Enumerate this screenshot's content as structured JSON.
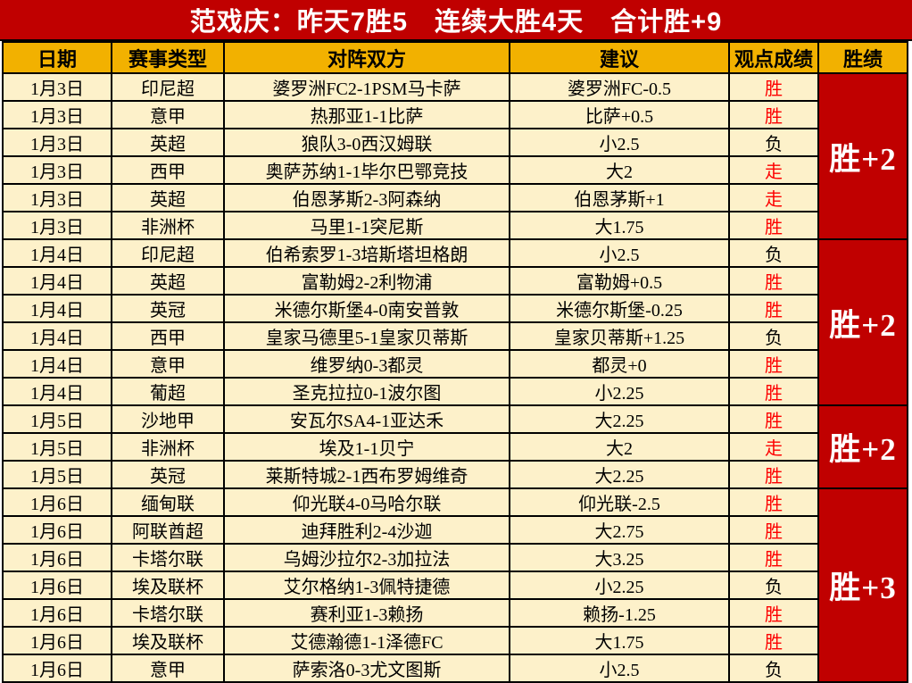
{
  "title": "范戏庆：昨天7胜5　连续大胜4天　合计胜+9",
  "columns": [
    "日期",
    "赛事类型",
    "对阵双方",
    "建议",
    "观点成绩",
    "胜绩"
  ],
  "colors": {
    "banner_red": "#C00000",
    "header_gold": "#F2B100",
    "cell_cream": "#FDF1CA",
    "win_text_red": "#FD0000",
    "loss_text_black": "#000000",
    "group_text_white": "#FFFFFF"
  },
  "groups": [
    {
      "date": "1月3日",
      "summary": "胜+2",
      "rows": [
        {
          "league": "印尼超",
          "match": "婆罗洲FC2-1PSM马卡萨",
          "tip": "婆罗洲FC-0.5",
          "result": "胜",
          "result_color": "red"
        },
        {
          "league": "意甲",
          "match": "热那亚1-1比萨",
          "tip": "比萨+0.5",
          "result": "胜",
          "result_color": "red"
        },
        {
          "league": "英超",
          "match": "狼队3-0西汉姆联",
          "tip": "小2.5",
          "result": "负",
          "result_color": "black"
        },
        {
          "league": "西甲",
          "match": "奥萨苏纳1-1毕尔巴鄂竞技",
          "tip": "大2",
          "result": "走",
          "result_color": "red"
        },
        {
          "league": "英超",
          "match": "伯恩茅斯2-3阿森纳",
          "tip": "伯恩茅斯+1",
          "result": "走",
          "result_color": "red"
        },
        {
          "league": "非洲杯",
          "match": "马里1-1突尼斯",
          "tip": "大1.75",
          "result": "胜",
          "result_color": "red"
        }
      ]
    },
    {
      "date": "1月4日",
      "summary": "胜+2",
      "rows": [
        {
          "league": "印尼超",
          "match": "伯希索罗1-3培斯塔坦格朗",
          "tip": "小2.5",
          "result": "负",
          "result_color": "black"
        },
        {
          "league": "英超",
          "match": "富勒姆2-2利物浦",
          "tip": "富勒姆+0.5",
          "result": "胜",
          "result_color": "red"
        },
        {
          "league": "英冠",
          "match": "米德尔斯堡4-0南安普敦",
          "tip": "米德尔斯堡-0.25",
          "result": "胜",
          "result_color": "red"
        },
        {
          "league": "西甲",
          "match": "皇家马德里5-1皇家贝蒂斯",
          "tip": "皇家贝蒂斯+1.25",
          "result": "负",
          "result_color": "black"
        },
        {
          "league": "意甲",
          "match": "维罗纳0-3都灵",
          "tip": "都灵+0",
          "result": "胜",
          "result_color": "red"
        },
        {
          "league": "葡超",
          "match": "圣克拉拉0-1波尔图",
          "tip": "小2.25",
          "result": "胜",
          "result_color": "red"
        }
      ]
    },
    {
      "date": "1月5日",
      "summary": "胜+2",
      "rows": [
        {
          "league": "沙地甲",
          "match": "安瓦尔SA4-1亚达禾",
          "tip": "大2.25",
          "result": "胜",
          "result_color": "red"
        },
        {
          "league": "非洲杯",
          "match": "埃及1-1贝宁",
          "tip": "大2",
          "result": "走",
          "result_color": "red"
        },
        {
          "league": "英冠",
          "match": "莱斯特城2-1西布罗姆维奇",
          "tip": "大2.25",
          "result": "胜",
          "result_color": "red"
        }
      ]
    },
    {
      "date": "1月6日",
      "summary": "胜+3",
      "rows": [
        {
          "league": "缅甸联",
          "match": "仰光联4-0马哈尔联",
          "tip": "仰光联-2.5",
          "result": "胜",
          "result_color": "red"
        },
        {
          "league": "阿联酋超",
          "match": "迪拜胜利2-4沙迦",
          "tip": "大2.75",
          "result": "胜",
          "result_color": "red"
        },
        {
          "league": "卡塔尔联",
          "match": "乌姆沙拉尔2-3加拉法",
          "tip": "大3.25",
          "result": "胜",
          "result_color": "red"
        },
        {
          "league": "埃及联杯",
          "match": "艾尔格纳1-3佩特捷德",
          "tip": "小2.25",
          "result": "负",
          "result_color": "black"
        },
        {
          "league": "卡塔尔联",
          "match": "赛利亚1-3赖扬",
          "tip": "赖扬-1.25",
          "result": "胜",
          "result_color": "red"
        },
        {
          "league": "埃及联杯",
          "match": "艾德瀚德1-1泽德FC",
          "tip": "大1.75",
          "result": "胜",
          "result_color": "red"
        },
        {
          "league": "意甲",
          "match": "萨索洛0-3尤文图斯",
          "tip": "小2.5",
          "result": "负",
          "result_color": "black"
        }
      ]
    }
  ]
}
